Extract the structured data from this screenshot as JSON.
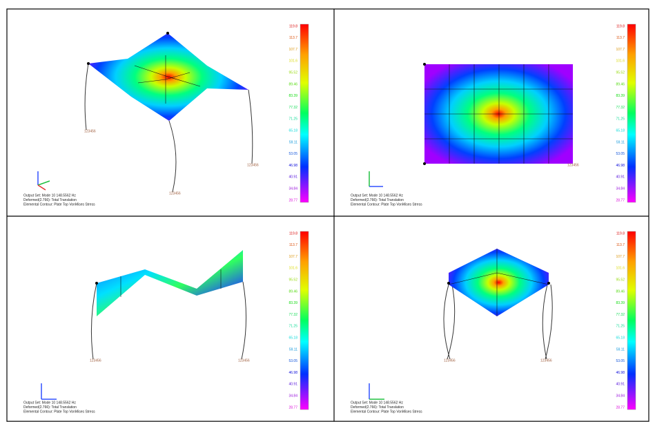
{
  "panels": [
    {
      "caption": [
        "Output Set: Mode 10 148.5562 Hz",
        "Deformed(2.766): Total Translation",
        "Elemental Contour: Plate Top VonMises Stress"
      ],
      "support_labels": [
        "123456",
        "123456",
        "123456"
      ]
    },
    {
      "caption": [
        "Output Set: Mode 10 148.5562 Hz",
        "Deformed(2.766): Total Translation",
        "Elemental Contour: Plate Top VonMises Stress"
      ],
      "support_labels": [
        "123456"
      ]
    },
    {
      "caption": [
        "Output Set: Mode 10 148.5562 Hz",
        "Deformed(2.766): Total Translation",
        "Elemental Contour: Plate Top VonMises Stress"
      ],
      "support_labels": [
        "123456",
        "123456"
      ]
    },
    {
      "caption": [
        "Output Set: Mode 10 148.5562 Hz",
        "Deformed(2.766): Total Translation",
        "Elemental Contour: Plate Top VonMises Stress"
      ],
      "support_labels": [
        "123456",
        "123456"
      ]
    }
  ],
  "legend": {
    "labels": [
      "119.8",
      "113.7",
      "107.7",
      "101.6",
      "95.52",
      "89.46",
      "83.39",
      "77.32",
      "71.25",
      "65.18",
      "59.11",
      "53.05",
      "46.98",
      "40.91",
      "34.84",
      "28.77"
    ]
  }
}
